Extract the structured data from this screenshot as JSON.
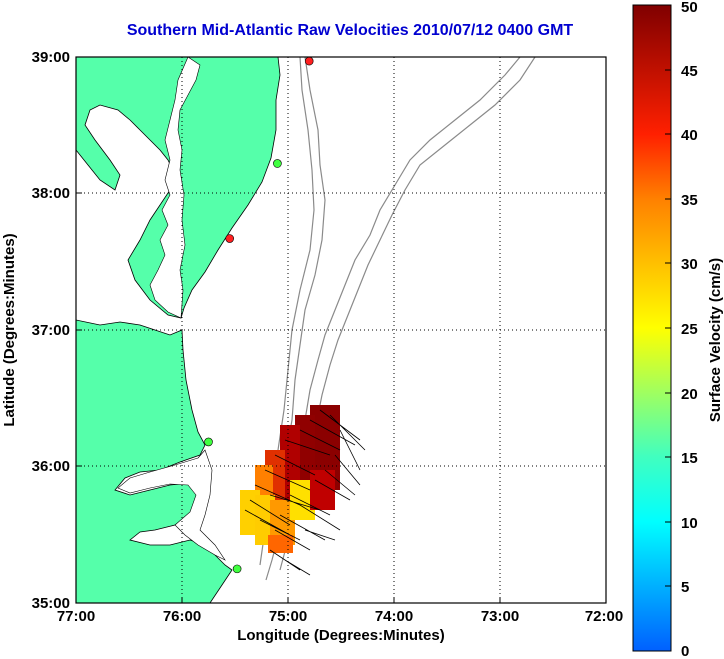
{
  "title": "Southern Mid-Atlantic Raw Velocities 2010/07/12 0400 GMT",
  "map": {
    "xlabel": "Longitude (Degrees:Minutes)",
    "ylabel": "Latitude (Degrees:Minutes)",
    "x_ticks": [
      "77:00",
      "76:00",
      "75:00",
      "74:00",
      "73:00",
      "72:00"
    ],
    "y_ticks": [
      "39:00",
      "38:00",
      "37:00",
      "36:00",
      "35:00"
    ],
    "lon_range": [
      -77,
      -72
    ],
    "lat_range": [
      35,
      39
    ],
    "grid": true,
    "land_color": "#55ffaa",
    "water_color": "#ffffff",
    "isobath_color": "#8a8a8a"
  },
  "colorbar": {
    "label": "Surface Velocity (cm/s)",
    "ticks": [
      "0",
      "5",
      "10",
      "15",
      "20",
      "25",
      "30",
      "35",
      "40",
      "45",
      "50"
    ],
    "range": [
      0,
      50
    ]
  },
  "stations": [
    {
      "lon": -74.8,
      "lat": 38.97,
      "color": "#ff2020"
    },
    {
      "lon": -75.1,
      "lat": 38.22,
      "color": "#40ff40"
    },
    {
      "lon": -75.55,
      "lat": 37.67,
      "color": "#ff2020"
    },
    {
      "lon": -75.75,
      "lat": 36.18,
      "color": "#40ff40"
    },
    {
      "lon": -75.48,
      "lat": 35.25,
      "color": "#40ff40"
    }
  ]
}
